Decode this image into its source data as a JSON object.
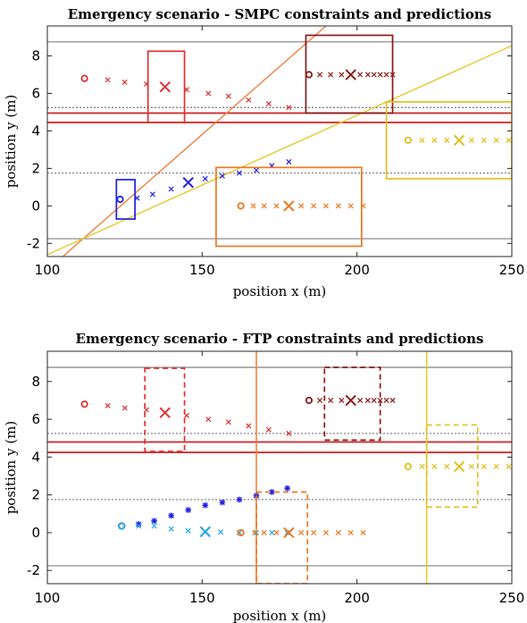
{
  "chart_data": [
    {
      "type": "scatter",
      "title": "Emergency scenario - SMPC constraints and predictions",
      "xlabel": "position x (m)",
      "ylabel": "position y (m)",
      "xlim": [
        100,
        250
      ],
      "ylim": [
        -2.7,
        9.6
      ],
      "xticks": [
        "100",
        "150",
        "200",
        "250"
      ],
      "yticks": [
        "-2",
        "0",
        "2",
        "4",
        "6",
        "8"
      ],
      "lanes": {
        "gray_solid": [
          8.75,
          -1.75
        ],
        "gray_dotted": [
          5.25,
          1.75
        ],
        "red_solid": [
          4.95,
          4.45
        ]
      },
      "series": [
        {
          "color": "#2020e0",
          "start": [
            123.5,
            0.35
          ],
          "current": [
            145.5,
            1.25
          ],
          "x": [
            123.5,
            129,
            134,
            140,
            145.5,
            151,
            156.5,
            162,
            167.5,
            172.5,
            178
          ],
          "y": [
            0.35,
            0.42,
            0.62,
            0.9,
            1.25,
            1.45,
            1.6,
            1.75,
            1.9,
            2.15,
            2.35
          ],
          "box": {
            "x": [
              122.3,
              128.3
            ],
            "y": [
              -0.7,
              1.4
            ]
          }
        },
        {
          "color": "#e03030",
          "start": [
            112,
            6.8
          ],
          "current": [
            138,
            6.35
          ],
          "x": [
            112,
            119.5,
            125,
            132,
            138,
            145,
            152,
            158.5,
            165,
            171.5,
            178
          ],
          "y": [
            6.8,
            6.72,
            6.6,
            6.5,
            6.35,
            6.2,
            6.0,
            5.85,
            5.65,
            5.45,
            5.25
          ],
          "box": {
            "x": [
              132.5,
              144.3
            ],
            "y": [
              4.45,
              8.25
            ]
          }
        },
        {
          "color": "#8b1a1a",
          "start": [
            184.5,
            7.0
          ],
          "current": [
            198,
            7.0
          ],
          "x": [
            184.5,
            188,
            191.5,
            195,
            198,
            201,
            203.5,
            205.5,
            207.5,
            209.5,
            211.5
          ],
          "y": [
            7.0,
            7.0,
            7.0,
            7.0,
            7.0,
            7.0,
            7.0,
            7.0,
            7.0,
            7.0,
            7.0
          ],
          "box": {
            "x": [
              183.5,
              211.5
            ],
            "y": [
              4.95,
              9.1
            ]
          }
        },
        {
          "color": "#f07820",
          "start": [
            162.5,
            0.0
          ],
          "current": [
            178,
            0.0
          ],
          "x": [
            162.5,
            166.5,
            170,
            174,
            178,
            182,
            186,
            190,
            194,
            198,
            202
          ],
          "y": [
            0,
            0,
            0,
            0,
            0,
            0,
            0,
            0,
            0,
            0,
            0
          ],
          "box": {
            "x": [
              154.5,
              201.5
            ],
            "y": [
              -2.15,
              2.05
            ]
          }
        },
        {
          "color": "#e0c020",
          "start": [
            216.5,
            3.5
          ],
          "current": [
            233,
            3.5
          ],
          "x": [
            216.5,
            221,
            225,
            229,
            233,
            237,
            241,
            245,
            249
          ],
          "y": [
            3.5,
            3.5,
            3.5,
            3.5,
            3.5,
            3.5,
            3.5,
            3.5,
            3.5
          ],
          "box": {
            "x": [
              209.5,
              250
            ],
            "y": [
              1.45,
              5.55
            ]
          }
        }
      ],
      "lines": [
        {
          "color": "#f08040",
          "from": [
            105,
            -2.7
          ],
          "to": [
            190,
            9.6
          ]
        },
        {
          "color": "#e8c830",
          "from": [
            100,
            -2.6
          ],
          "to": [
            250,
            8.55
          ]
        }
      ]
    },
    {
      "type": "scatter",
      "title": "Emergency scenario - FTP constraints and predictions",
      "xlabel": "position x (m)",
      "ylabel": "position y (m)",
      "xlim": [
        100,
        250
      ],
      "ylim": [
        -2.7,
        9.6
      ],
      "xticks": [
        "100",
        "150",
        "200",
        "250"
      ],
      "yticks": [
        "-2",
        "0",
        "2",
        "4",
        "6",
        "8"
      ],
      "lanes": {
        "gray_solid": [
          8.75,
          -1.75
        ],
        "gray_dotted": [
          5.25,
          1.75
        ],
        "red_solid": [
          4.8,
          4.25
        ]
      },
      "vlines": [
        {
          "color": "#f08040",
          "x": 167.5
        },
        {
          "color": "#e8c830",
          "x": 222.5
        }
      ],
      "series": [
        {
          "color": "#2020e0",
          "marker": "star",
          "start": [
            124,
            0.35
          ],
          "x": [
            124,
            129.5,
            134.5,
            140,
            145.5,
            151,
            156.5,
            162,
            167.5,
            172.5,
            177.5
          ],
          "y": [
            0.35,
            0.45,
            0.62,
            0.9,
            1.2,
            1.45,
            1.6,
            1.75,
            1.95,
            2.15,
            2.35
          ]
        },
        {
          "color": "#20a8e8",
          "start": [
            124,
            0.35
          ],
          "current": [
            151,
            0.05
          ],
          "x": [
            129.5,
            134.5,
            140,
            145.5,
            151,
            156,
            162,
            167.5,
            172.5,
            177.5
          ],
          "y": [
            0.35,
            0.35,
            0.2,
            0.1,
            0.05,
            0.03,
            0.0,
            0.0,
            0.0,
            0.0
          ]
        },
        {
          "color": "#e03030",
          "start": [
            112,
            6.8
          ],
          "current": [
            138,
            6.35
          ],
          "x": [
            112,
            119.5,
            125,
            132,
            138,
            145,
            152,
            158.5,
            165,
            171.5,
            178
          ],
          "y": [
            6.8,
            6.72,
            6.6,
            6.5,
            6.35,
            6.2,
            6.0,
            5.85,
            5.65,
            5.45,
            5.25
          ],
          "box": {
            "x": [
              131.5,
              144.3
            ],
            "y": [
              4.3,
              8.7
            ],
            "dashed": true
          }
        },
        {
          "color": "#8b1a1a",
          "start": [
            184.5,
            7.0
          ],
          "current": [
            198,
            7.0
          ],
          "x": [
            184.5,
            188,
            191.5,
            195,
            198,
            201,
            203.5,
            205.5,
            207.5,
            209.5,
            211.5
          ],
          "y": [
            7.0,
            7.0,
            7.0,
            7.0,
            7.0,
            7.0,
            7.0,
            7.0,
            7.0,
            7.0,
            7.0
          ],
          "box": {
            "x": [
              189.5,
              207.5
            ],
            "y": [
              4.9,
              8.75
            ],
            "dashed": true
          }
        },
        {
          "color": "#f07820",
          "start": [
            162.5,
            0.0
          ],
          "current": [
            178,
            0.0
          ],
          "x": [
            162.5,
            167,
            170,
            174,
            178,
            182,
            186,
            190,
            194,
            198,
            202
          ],
          "y": [
            0,
            0,
            0,
            0,
            0,
            0,
            0,
            0,
            0,
            0,
            0
          ],
          "box": {
            "x": [
              167.5,
              184
            ],
            "y": [
              -2.7,
              2.15
            ],
            "dashed": true
          }
        },
        {
          "color": "#e0c020",
          "start": [
            216.5,
            3.5
          ],
          "current": [
            233,
            3.5
          ],
          "x": [
            216.5,
            221,
            225,
            229,
            233,
            237,
            241,
            245,
            249
          ],
          "y": [
            3.5,
            3.5,
            3.5,
            3.5,
            3.5,
            3.5,
            3.5,
            3.5,
            3.5
          ],
          "box": {
            "x": [
              222.5,
              239
            ],
            "y": [
              1.35,
              5.7
            ],
            "dashed": true
          }
        }
      ]
    }
  ]
}
